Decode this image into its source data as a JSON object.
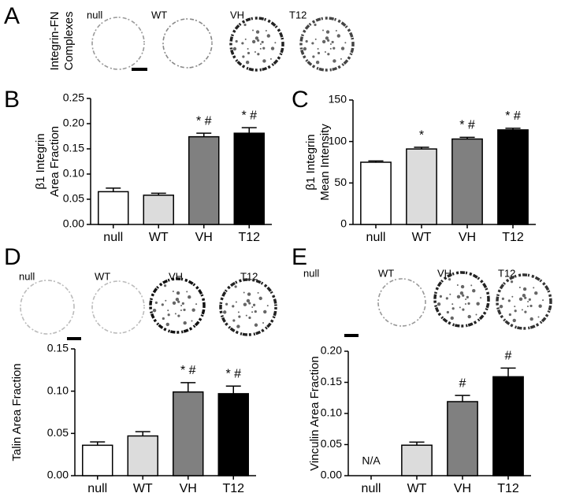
{
  "panels": [
    {
      "letter": "A",
      "ylabel": [
        "Integrin-FN",
        "Complexes"
      ],
      "image_labels": [
        "null",
        "WT",
        "VH",
        "T12"
      ]
    },
    {
      "letter": "B"
    },
    {
      "letter": "C"
    },
    {
      "letter": "D",
      "image_labels": [
        "null",
        "WT",
        "VH",
        "T12"
      ]
    },
    {
      "letter": "E",
      "image_labels": [
        "null",
        "WT",
        "VH",
        "T12"
      ]
    }
  ],
  "chart_data": [
    {
      "type": "bar",
      "ylabel": [
        "β1 Integrin",
        "Area Fraction"
      ],
      "categories": [
        "null",
        "WT",
        "VH",
        "T12"
      ],
      "values": [
        0.065,
        0.058,
        0.174,
        0.181
      ],
      "errors": [
        0.007,
        0.004,
        0.007,
        0.011
      ],
      "annotations": [
        null,
        null,
        "* #",
        "* #"
      ],
      "colors": [
        "#ffffff",
        "#dcdcdc",
        "#808080",
        "#000000"
      ],
      "ylim": [
        0,
        0.25
      ],
      "yticks": [
        {
          "value": 0,
          "label": "0.00"
        },
        {
          "value": 0.05,
          "label": "0.05"
        },
        {
          "value": 0.1,
          "label": "0.10"
        },
        {
          "value": 0.15,
          "label": "0.15"
        },
        {
          "value": 0.2,
          "label": "0.20"
        },
        {
          "value": 0.25,
          "label": "0.25"
        }
      ]
    },
    {
      "type": "bar",
      "ylabel": [
        "β1 Integrin",
        "Mean Intensity"
      ],
      "categories": [
        "null",
        "WT",
        "VH",
        "T12"
      ],
      "values": [
        75,
        91,
        103,
        114
      ],
      "errors": [
        1.5,
        2,
        2,
        2
      ],
      "annotations": [
        null,
        "*",
        "* #",
        "* #"
      ],
      "colors": [
        "#ffffff",
        "#dcdcdc",
        "#808080",
        "#000000"
      ],
      "ylim": [
        0,
        150
      ],
      "yticks": [
        0,
        50,
        100,
        150
      ]
    },
    {
      "type": "bar",
      "ylabel": [
        "Talin Area Fraction"
      ],
      "categories": [
        "null",
        "WT",
        "VH",
        "T12"
      ],
      "values": [
        0.036,
        0.047,
        0.099,
        0.097
      ],
      "errors": [
        0.004,
        0.005,
        0.011,
        0.009
      ],
      "annotations": [
        null,
        null,
        "* #",
        "* #"
      ],
      "colors": [
        "#ffffff",
        "#dcdcdc",
        "#808080",
        "#000000"
      ],
      "ylim": [
        0,
        0.15
      ],
      "yticks": [
        {
          "value": 0,
          "label": "0.00"
        },
        {
          "value": 0.05,
          "label": "0.05"
        },
        {
          "value": 0.1,
          "label": "0.10"
        },
        {
          "value": 0.15,
          "label": "0.15"
        }
      ]
    },
    {
      "type": "bar",
      "ylabel": [
        "Vinculin Area Fraction"
      ],
      "categories": [
        "null",
        "WT",
        "VH",
        "T12"
      ],
      "values": [
        null,
        0.049,
        0.119,
        0.159
      ],
      "errors": [
        null,
        0.005,
        0.01,
        0.014
      ],
      "value_labels": [
        "N/A",
        null,
        null,
        null
      ],
      "annotations": [
        null,
        null,
        "#",
        "#"
      ],
      "colors": [
        "#ffffff",
        "#dcdcdc",
        "#808080",
        "#000000"
      ],
      "ylim": [
        0,
        0.2
      ],
      "yticks": [
        {
          "value": 0,
          "label": "0.00"
        },
        {
          "value": 0.05,
          "label": "0.05"
        },
        {
          "value": 0.1,
          "label": "0.10"
        },
        {
          "value": 0.15,
          "label": "0.15"
        },
        {
          "value": 0.2,
          "label": "0.20"
        }
      ]
    }
  ]
}
